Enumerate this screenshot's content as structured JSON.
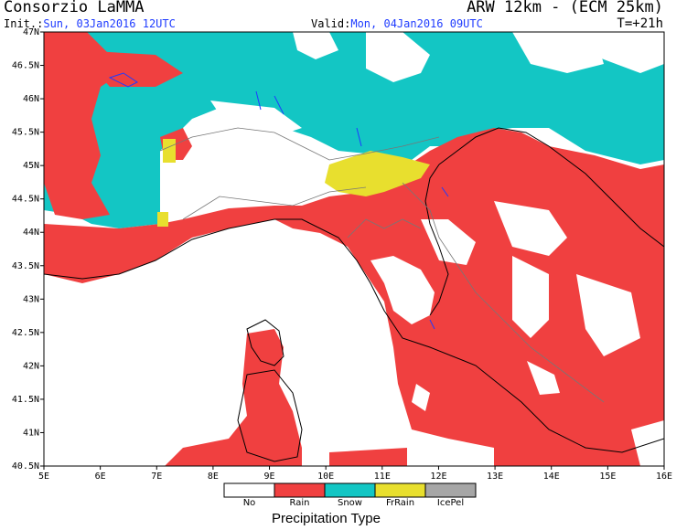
{
  "header": {
    "org": "Consorzio LaMMA",
    "model": "ARW 12km - (ECM 25km)",
    "init_label": "Init.:",
    "init_value": "Sun, 03Jan2016 12UTC",
    "valid_label": "Valid:",
    "valid_value": "Mon, 04Jan2016 09UTC",
    "timestep": "T=+21h"
  },
  "map": {
    "lon_range": [
      5,
      16
    ],
    "lat_range": [
      40.5,
      47
    ],
    "lon_ticks": [
      "5E",
      "6E",
      "7E",
      "8E",
      "9E",
      "10E",
      "11E",
      "12E",
      "13E",
      "14E",
      "15E",
      "16E"
    ],
    "lat_ticks": [
      "47N",
      "46.5N",
      "46N",
      "45.5N",
      "45N",
      "44.5N",
      "44N",
      "43.5N",
      "43N",
      "42.5N",
      "42N",
      "41.5N",
      "41N",
      "40.5N"
    ]
  },
  "legend": {
    "title": "Precipitation Type",
    "items": [
      {
        "label": "No",
        "color": "#ffffff"
      },
      {
        "label": "Rain",
        "color": "#f04040"
      },
      {
        "label": "Snow",
        "color": "#13c6c4"
      },
      {
        "label": "FrRain",
        "color": "#e8df2e"
      },
      {
        "label": "IcePel",
        "color": "#a6a6a6"
      }
    ]
  }
}
